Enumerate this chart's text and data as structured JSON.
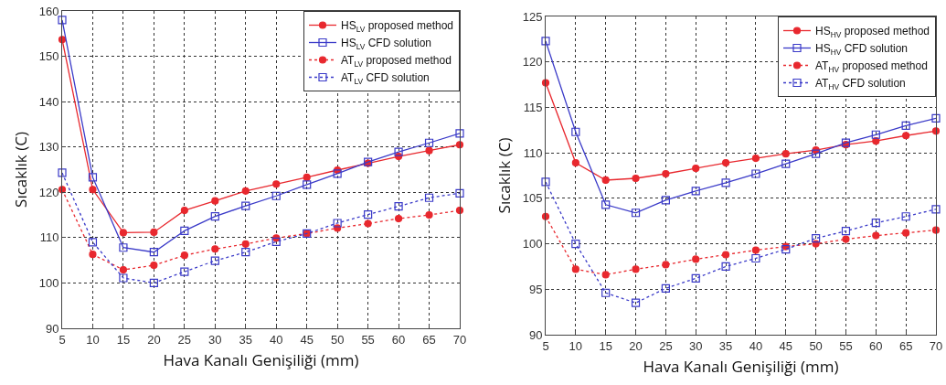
{
  "chart_data": [
    {
      "type": "line",
      "xlabel": "Hava Kanalı Genişiliği (mm)",
      "ylabel": "Sıcaklık (C)",
      "x": [
        5,
        10,
        15,
        20,
        25,
        30,
        35,
        40,
        45,
        50,
        55,
        60,
        65,
        70
      ],
      "xlim": [
        5,
        70
      ],
      "xticks": [
        5,
        10,
        15,
        20,
        25,
        30,
        35,
        40,
        45,
        50,
        55,
        60,
        65,
        70
      ],
      "ylim": [
        90,
        160
      ],
      "yticks": [
        90,
        100,
        110,
        120,
        130,
        140,
        150,
        160
      ],
      "grid": true,
      "legend": "top right",
      "series": [
        {
          "name": "HS$_{LV}$ proposed method",
          "color": "#e8282e",
          "marker": "circle",
          "line_style": "solid",
          "values": [
            153.7,
            120.6,
            111.1,
            111.2,
            116,
            118.1,
            120.3,
            121.8,
            123.3,
            124.9,
            126.4,
            127.9,
            129.2,
            130.5
          ]
        },
        {
          "name": "HS$_{LV}$ CFD solution",
          "color": "#3a3ac8",
          "marker": "square",
          "line_style": "solid",
          "values": [
            158,
            123.3,
            107.8,
            106.8,
            111.5,
            114.7,
            117,
            119.2,
            121.7,
            124.1,
            126.7,
            128.9,
            130.9,
            133
          ]
        },
        {
          "name": "AT$_{LV}$ proposed method",
          "color": "#e8282e",
          "marker": "circle",
          "line_style": "dotted",
          "values": [
            120.6,
            106.3,
            102.9,
            103.9,
            106.1,
            107.5,
            108.6,
            109.9,
            110.9,
            112.1,
            113.1,
            114.2,
            115,
            116
          ]
        },
        {
          "name": "AT$_{LV}$ CFD solution",
          "color": "#3a3ac8",
          "marker": "square",
          "line_style": "dotted",
          "values": [
            124.3,
            109,
            101.1,
            100,
            102.5,
            104.9,
            106.8,
            109.1,
            110.9,
            113.2,
            115.1,
            116.9,
            118.8,
            119.8
          ]
        }
      ]
    },
    {
      "type": "line",
      "xlabel": "Hava Kanalı Genişiliği (mm)",
      "ylabel": "Sıcaklık (C)",
      "x": [
        5,
        10,
        15,
        20,
        25,
        30,
        35,
        40,
        45,
        50,
        55,
        60,
        65,
        70
      ],
      "xlim": [
        5,
        70
      ],
      "xticks": [
        5,
        10,
        15,
        20,
        25,
        30,
        35,
        40,
        45,
        50,
        55,
        60,
        65,
        70
      ],
      "ylim": [
        90,
        125
      ],
      "yticks": [
        90,
        95,
        100,
        105,
        110,
        115,
        120,
        125
      ],
      "grid": true,
      "legend": "top right",
      "series": [
        {
          "name": "HS$_{HV}$ proposed method",
          "color": "#e8282e",
          "marker": "circle",
          "line_style": "solid",
          "values": [
            117.7,
            108.9,
            107,
            107.2,
            107.7,
            108.3,
            108.9,
            109.4,
            109.9,
            110.3,
            110.9,
            111.3,
            111.9,
            112.4
          ]
        },
        {
          "name": "HS$_{HV}$ CFD solution",
          "color": "#3a3ac8",
          "marker": "square",
          "line_style": "solid",
          "values": [
            122.3,
            112.3,
            104.3,
            103.4,
            104.8,
            105.8,
            106.7,
            107.7,
            108.8,
            109.9,
            111.1,
            112,
            113,
            113.8
          ]
        },
        {
          "name": "AT$_{HV}$ proposed method",
          "color": "#e8282e",
          "marker": "circle",
          "line_style": "dotted",
          "values": [
            103,
            97.2,
            96.6,
            97.2,
            97.7,
            98.3,
            98.8,
            99.3,
            99.7,
            100,
            100.5,
            100.9,
            101.2,
            101.5
          ]
        },
        {
          "name": "AT$_{HV}$ CFD solution",
          "color": "#3a3ac8",
          "marker": "square",
          "line_style": "dotted",
          "values": [
            106.8,
            100,
            94.6,
            93.5,
            95.1,
            96.2,
            97.5,
            98.4,
            99.4,
            100.6,
            101.4,
            102.3,
            103,
            103.8
          ]
        }
      ]
    }
  ]
}
